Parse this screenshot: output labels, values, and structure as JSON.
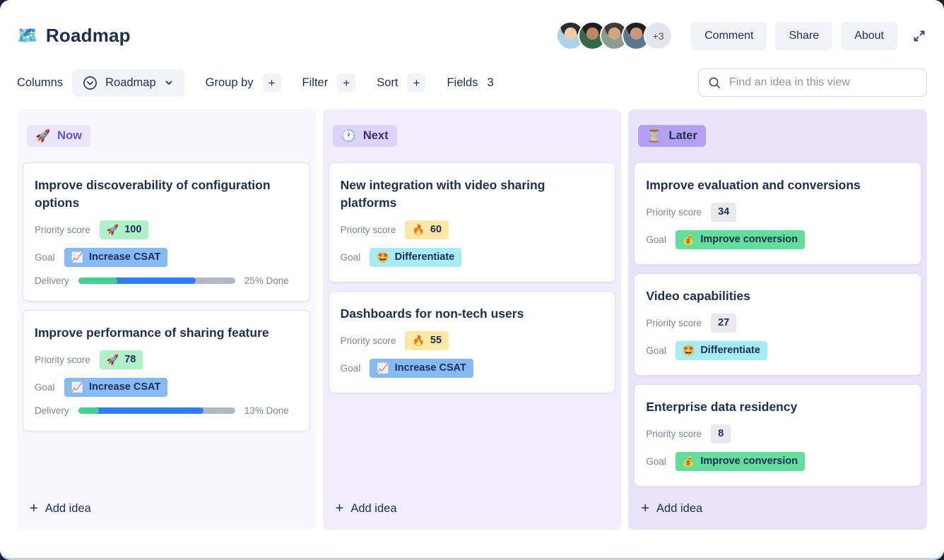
{
  "theme": {
    "backdrop": "#15203a",
    "text_dark": "#1f2d51",
    "text_gray": "#7b8499",
    "button_bg": "#f2f3f6",
    "search_border": "#d5d9e2",
    "progress_green": "#43cf8d",
    "progress_blue": "#2e7df6",
    "progress_track_gray": "#b1b8c4"
  },
  "header": {
    "icon": "🗺️",
    "title": "Roadmap",
    "avatar_overflow": "+3",
    "buttons": [
      {
        "label": "Comment"
      },
      {
        "label": "Share"
      },
      {
        "label": "About"
      }
    ]
  },
  "avatars": [
    {
      "name": "avatar-1",
      "bg": "#a9d4ea",
      "skin": "#f3c9a4",
      "hair": "#2e2b31"
    },
    {
      "name": "avatar-2",
      "bg": "#33684a",
      "skin": "#b98a63",
      "hair": "#201e23"
    },
    {
      "name": "avatar-3",
      "bg": "#8e9b90",
      "skin": "#cfa684",
      "hair": "#463a2e"
    },
    {
      "name": "avatar-4",
      "bg": "#5b7790",
      "skin": "#c9997c",
      "hair": "#23211f"
    }
  ],
  "toolbar": {
    "columns_label": "Columns",
    "view_label": "Roadmap",
    "group_by_label": "Group by",
    "filter_label": "Filter",
    "sort_label": "Sort",
    "fields_label": "Fields",
    "fields_count": "3",
    "plus": "+",
    "search_placeholder": "Find an idea in this view"
  },
  "board": {
    "add_idea_label": "Add idea",
    "columns": [
      {
        "id": "now",
        "emoji": "🚀",
        "label": "Now",
        "bg": "#f8f7fe",
        "badge_bg": "#eae5fc",
        "badge_color": "#6553d6",
        "cards": [
          {
            "title": "Improve discoverability of configuration options",
            "priority": {
              "label": "Priority score",
              "emoji": "🚀",
              "value": "100",
              "bg": "#aff0c9"
            },
            "goal": {
              "label": "Goal",
              "emoji": "📈",
              "value": "Increase CSAT",
              "bg": "#85baf7"
            },
            "delivery": {
              "label": "Delivery",
              "green_pct": 25,
              "blue_pct": 75,
              "text": "25% Done"
            }
          },
          {
            "title": "Improve performance of sharing feature",
            "priority": {
              "label": "Priority score",
              "emoji": "🚀",
              "value": "78",
              "bg": "#aff0c9"
            },
            "goal": {
              "label": "Goal",
              "emoji": "📈",
              "value": "Increase CSAT",
              "bg": "#85baf7"
            },
            "delivery": {
              "label": "Delivery",
              "green_pct": 13,
              "blue_pct": 80,
              "text": "13% Done"
            }
          }
        ]
      },
      {
        "id": "next",
        "emoji": "🕐",
        "label": "Next",
        "bg": "#f1edfc",
        "badge_bg": "#ddd3f8",
        "badge_color": "#3b3168",
        "cards": [
          {
            "title": "New integration with video sharing platforms",
            "priority": {
              "label": "Priority score",
              "emoji": "🔥",
              "value": "60",
              "bg": "#fbe8a5"
            },
            "goal": {
              "label": "Goal",
              "emoji": "🤩",
              "value": "Differentiate",
              "bg": "#a5ecf5"
            }
          },
          {
            "title": "Dashboards for non-tech users",
            "priority": {
              "label": "Priority score",
              "emoji": "🔥",
              "value": "55",
              "bg": "#fbe8a5"
            },
            "goal": {
              "label": "Goal",
              "emoji": "📈",
              "value": "Increase CSAT",
              "bg": "#85baf7"
            }
          }
        ]
      },
      {
        "id": "later",
        "emoji": "⏳",
        "label": "Later",
        "bg": "#e9e3fa",
        "badge_bg": "#b4a0f0",
        "badge_color": "#25304f",
        "cards": [
          {
            "title": "Improve evaluation and conversions",
            "priority": {
              "label": "Priority score",
              "emoji": "",
              "value": "34",
              "bg": "#e8e8ed"
            },
            "goal": {
              "label": "Goal",
              "emoji": "💰",
              "value": "Improve conversion",
              "bg": "#62dd9c"
            }
          },
          {
            "title": "Video capabilities",
            "priority": {
              "label": "Priority score",
              "emoji": "",
              "value": "27",
              "bg": "#e8e8ed"
            },
            "goal": {
              "label": "Goal",
              "emoji": "🤩",
              "value": "Differentiate",
              "bg": "#a5ecf5"
            }
          },
          {
            "title": "Enterprise data residency",
            "priority": {
              "label": "Priority score",
              "emoji": "",
              "value": "8",
              "bg": "#e8e8ed"
            },
            "goal": {
              "label": "Goal",
              "emoji": "💰",
              "value": "Improve conversion",
              "bg": "#62dd9c"
            }
          }
        ]
      }
    ]
  }
}
